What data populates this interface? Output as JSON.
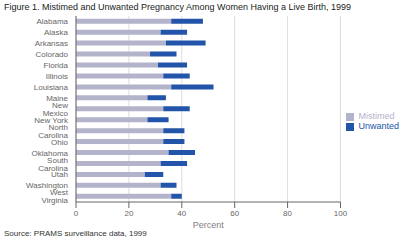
{
  "chart_data": {
    "type": "bar",
    "title": "Figure 1. Mistimed and Unwanted Pregnancy Among Women Having a Live Birth, 1999",
    "annotation": "Source: PRAMS surveillance data, 1999",
    "xlabel": "Percent",
    "orientation": "horizontal",
    "stacked": true,
    "categories": [
      "Alabama",
      "Alaska",
      "Arkansas",
      "Colorado",
      "Florida",
      "Illinois",
      "Louisiana",
      "Maine",
      "New Mexico",
      "New York",
      "North Carolina",
      "Ohio",
      "Oklahoma",
      "South Carolina",
      "Utah",
      "Washington",
      "West Virginia"
    ],
    "series": [
      {
        "name": "Mistimed",
        "color": "#b3b3cc",
        "values": [
          36,
          32,
          34,
          28,
          31,
          33,
          36,
          27,
          33,
          27,
          33,
          33,
          35,
          32,
          26,
          32,
          36
        ]
      },
      {
        "name": "Unwanted",
        "color": "#2255aa",
        "values": [
          12,
          10,
          15,
          10,
          11,
          10,
          16,
          7,
          10,
          8,
          8,
          8,
          10,
          10,
          7,
          6,
          4
        ]
      }
    ],
    "xlim": [
      0,
      100
    ],
    "xticks": [
      0,
      20,
      40,
      60,
      80,
      100
    ],
    "grid": true,
    "legend": "right"
  }
}
